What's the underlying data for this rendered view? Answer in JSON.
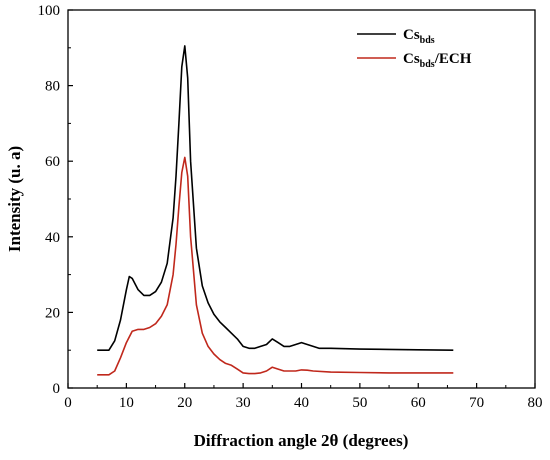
{
  "chart_data": {
    "type": "line",
    "title": "",
    "xlabel": "Diffraction angle 2θ (degrees)",
    "ylabel": "Intensity (u. a)",
    "xlim": [
      0,
      80
    ],
    "ylim": [
      0,
      100
    ],
    "xticks": [
      0,
      10,
      20,
      30,
      40,
      50,
      60,
      70,
      80
    ],
    "yticks": [
      0,
      20,
      40,
      60,
      80,
      100
    ],
    "grid": false,
    "legend_position": "top-right",
    "series": [
      {
        "name": "Cs",
        "name_sub": "bds",
        "name_suffix": "",
        "color": "#000000",
        "x": [
          5,
          7,
          8,
          9,
          10,
          10.5,
          11,
          12,
          13,
          14,
          15,
          16,
          17,
          18,
          18.5,
          19,
          19.5,
          20,
          20.5,
          21,
          22,
          23,
          24,
          25,
          26,
          27,
          28,
          29,
          30,
          31,
          32,
          33,
          34,
          35,
          36,
          37,
          38,
          39,
          40,
          41,
          42,
          43,
          45,
          50,
          55,
          60,
          66
        ],
        "y": [
          10,
          10,
          12.5,
          18,
          26,
          29.5,
          29,
          26,
          24.5,
          24.5,
          25.5,
          28,
          33,
          45,
          56,
          70,
          85,
          90.5,
          82,
          60,
          37,
          27,
          22.5,
          19.5,
          17.5,
          16,
          14.5,
          13,
          11,
          10.5,
          10.5,
          11,
          11.5,
          13,
          12,
          11,
          11,
          11.5,
          12,
          11.5,
          11,
          10.5,
          10.5,
          10.3,
          10.2,
          10.1,
          10
        ]
      },
      {
        "name": "Cs",
        "name_sub": "bds",
        "name_suffix": "/ECH",
        "color": "#c0281c",
        "x": [
          5,
          7,
          8,
          9,
          10,
          11,
          12,
          13,
          14,
          15,
          16,
          17,
          18,
          18.5,
          19,
          19.5,
          20,
          20.5,
          21,
          22,
          23,
          24,
          25,
          26,
          27,
          28,
          29,
          30,
          31,
          32,
          33,
          34,
          35,
          36,
          37,
          38,
          39,
          40,
          41,
          42,
          45,
          50,
          55,
          60,
          66
        ],
        "y": [
          3.5,
          3.5,
          4.5,
          8,
          12,
          15,
          15.5,
          15.5,
          16,
          17,
          19,
          22,
          30,
          38,
          48,
          57,
          61,
          56,
          40,
          22,
          14.5,
          11,
          9,
          7.5,
          6.5,
          6,
          5,
          4,
          3.8,
          3.8,
          4,
          4.5,
          5.5,
          5,
          4.5,
          4.5,
          4.5,
          4.8,
          4.7,
          4.5,
          4.2,
          4.1,
          4,
          4,
          4
        ]
      }
    ]
  }
}
